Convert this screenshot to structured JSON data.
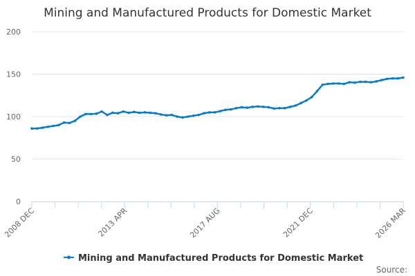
{
  "chart_data": {
    "type": "line",
    "title": "Mining and Manufactured Products for Domestic Market",
    "xlabel": "",
    "ylabel": "",
    "ylim": [
      0,
      200
    ],
    "yticks": [
      "0",
      "50",
      "100",
      "150",
      "200"
    ],
    "ytick_values": [
      0,
      50,
      100,
      150,
      200
    ],
    "xtick_labels": [
      "2008 DEC",
      "2013 APR",
      "2017 AUG",
      "2021 DEC",
      "2026 MAR"
    ],
    "x_start": "2008 DEC",
    "x_end": "2026 MAR",
    "x_step": "quarterly",
    "grid": true,
    "legend_position": "bottom-center",
    "series": [
      {
        "name": "Mining and Manufactured Products for Domestic Market",
        "color": "#0a7bc1",
        "values": [
          86,
          86,
          87,
          88,
          89,
          90,
          93,
          92.5,
          95,
          100,
          103,
          103,
          103.5,
          106,
          102,
          104.5,
          104,
          106,
          104.5,
          105.5,
          104.5,
          105,
          104.5,
          104,
          102.5,
          101.5,
          102,
          100,
          99,
          100,
          101,
          102,
          104,
          105,
          105,
          106.5,
          108,
          108.5,
          110,
          111,
          110.5,
          111.5,
          112,
          111.5,
          111,
          109.5,
          110,
          110,
          111.5,
          113,
          116,
          119,
          123,
          130,
          137.5,
          138.5,
          139,
          139,
          138.5,
          140.5,
          140,
          141,
          141,
          140.5,
          141.5,
          143,
          144.5,
          145,
          145,
          146
        ]
      }
    ],
    "source_label": "Source:"
  }
}
